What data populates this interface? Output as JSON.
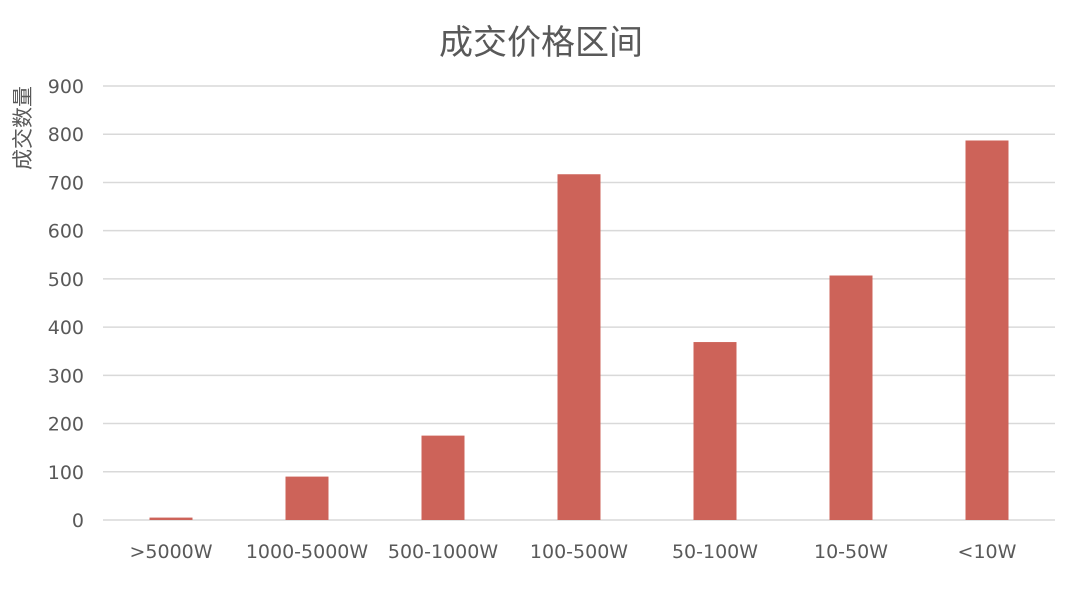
{
  "chart_data": {
    "type": "bar",
    "title": "成交价格区间",
    "xlabel": "",
    "ylabel": "成交数量",
    "categories": [
      ">5000W",
      "1000-5000W",
      "500-1000W",
      "100-500W",
      "50-100W",
      "10-50W",
      "<10W"
    ],
    "values": [
      5,
      90,
      175,
      717,
      369,
      507,
      787
    ],
    "ylim": [
      0,
      900
    ],
    "yticks": [
      0,
      100,
      200,
      300,
      400,
      500,
      600,
      700,
      800,
      900
    ],
    "grid": true,
    "bar_color": "#CD6359",
    "grid_color": "#D9D9D9",
    "text_color": "#595959"
  }
}
